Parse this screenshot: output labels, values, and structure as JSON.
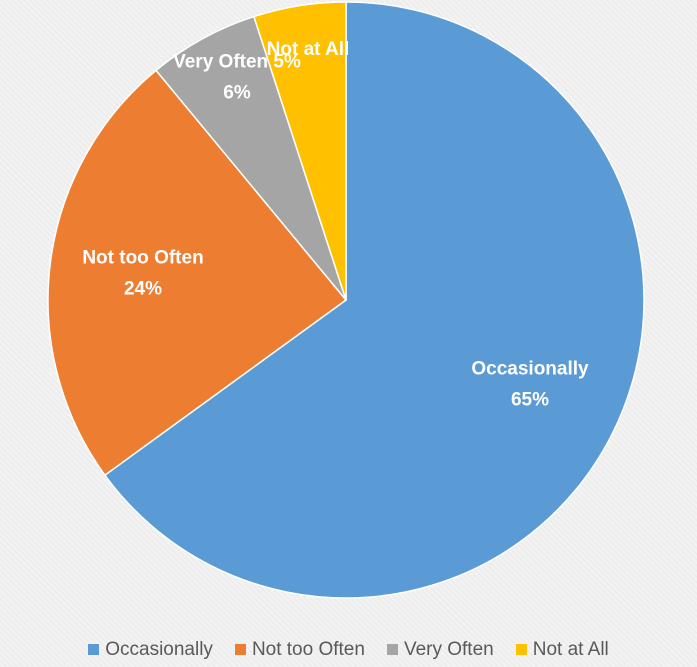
{
  "chart_data": {
    "type": "pie",
    "title": "",
    "slices": [
      {
        "name": "Occasionally",
        "value": 65,
        "label_lines": [
          "Occasionally",
          "65%"
        ],
        "color": "#5b9bd5"
      },
      {
        "name": "Not too Often",
        "value": 24,
        "label_lines": [
          "Not too Often",
          "24%"
        ],
        "color": "#ed7d31"
      },
      {
        "name": "Very Often",
        "value": 6,
        "label_lines": [
          "Very Often 5%",
          "6%"
        ],
        "color": "#a5a5a5"
      },
      {
        "name": "Not at All",
        "value": 5,
        "label_lines": [
          "Not at All"
        ],
        "color": "#ffc000"
      }
    ],
    "legend": {
      "position": "bottom",
      "entries": [
        "Occasionally",
        "Not too Often",
        "Very Often",
        "Not at All"
      ]
    }
  }
}
